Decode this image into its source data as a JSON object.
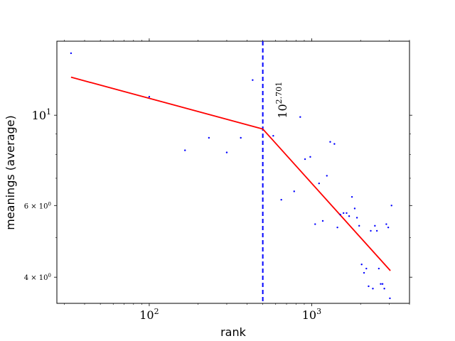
{
  "chart_data": {
    "type": "scatter",
    "xlabel": "rank",
    "ylabel": "meanings (average)",
    "x_scale": "log",
    "y_scale": "log",
    "xlim": [
      27,
      4000
    ],
    "ylim": [
      3.45,
      15.2
    ],
    "x_ticks": [
      {
        "value": 100,
        "base": "10",
        "exp": "2"
      },
      {
        "value": 1000,
        "base": "10",
        "exp": "3"
      }
    ],
    "y_ticks": [
      {
        "value": 10,
        "label": "10",
        "exp": "1",
        "size": "large"
      },
      {
        "value": 6,
        "label": "6 × 10",
        "exp": "0",
        "size": "small"
      },
      {
        "value": 4,
        "label": "4 × 10",
        "exp": "0",
        "size": "small"
      }
    ],
    "points": [
      [
        33,
        14.2
      ],
      [
        100,
        11.1
      ],
      [
        166,
        8.2
      ],
      [
        233,
        8.8
      ],
      [
        300,
        8.1
      ],
      [
        366,
        8.8
      ],
      [
        433,
        12.2
      ],
      [
        580,
        8.9
      ],
      [
        650,
        6.2
      ],
      [
        780,
        6.5
      ],
      [
        850,
        9.9
      ],
      [
        910,
        7.8
      ],
      [
        980,
        7.9
      ],
      [
        1050,
        5.4
      ],
      [
        1110,
        6.8
      ],
      [
        1170,
        5.5
      ],
      [
        1240,
        7.1
      ],
      [
        1300,
        8.6
      ],
      [
        1380,
        8.5
      ],
      [
        1440,
        5.3
      ],
      [
        1500,
        5.7
      ],
      [
        1570,
        5.75
      ],
      [
        1640,
        5.75
      ],
      [
        1700,
        5.65
      ],
      [
        1770,
        6.3
      ],
      [
        1840,
        5.9
      ],
      [
        1900,
        5.6
      ],
      [
        1960,
        5.35
      ],
      [
        2030,
        4.3
      ],
      [
        2100,
        4.1
      ],
      [
        2170,
        4.2
      ],
      [
        2240,
        3.8
      ],
      [
        2310,
        5.2
      ],
      [
        2380,
        3.75
      ],
      [
        2450,
        5.35
      ],
      [
        2520,
        5.2
      ],
      [
        2590,
        4.2
      ],
      [
        2660,
        3.85
      ],
      [
        2730,
        3.85
      ],
      [
        2800,
        3.75
      ],
      [
        2880,
        5.4
      ],
      [
        2960,
        5.3
      ],
      [
        3030,
        3.55
      ],
      [
        3100,
        6.0
      ]
    ],
    "fit_segments": [
      {
        "x": [
          33,
          500
        ],
        "y": [
          12.4,
          9.25
        ]
      },
      {
        "x": [
          500,
          3050
        ],
        "y": [
          9.25,
          4.15
        ]
      }
    ],
    "breakpoint_x": 500,
    "annotation": {
      "base": "10",
      "exp": "2.701",
      "x": 700,
      "y": 10.9
    },
    "colors": {
      "points": "#0000ff",
      "fit": "#ff0000",
      "breakpoint": "#0000ff"
    }
  }
}
